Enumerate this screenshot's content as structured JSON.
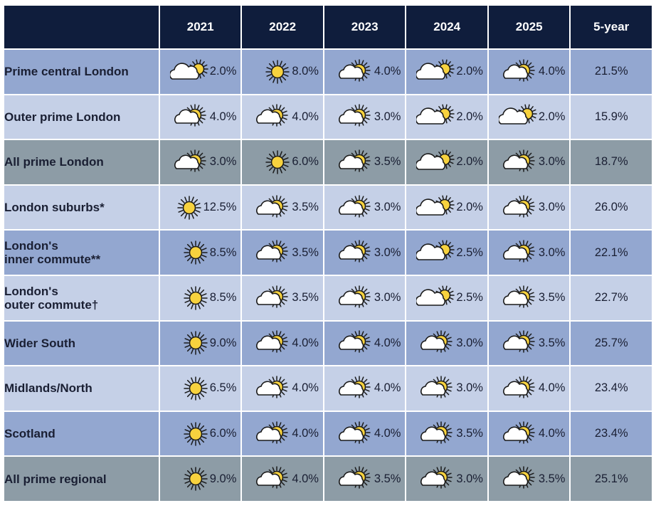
{
  "table": {
    "headers": [
      "",
      "2021",
      "2022",
      "2023",
      "2024",
      "2025",
      "5-year"
    ],
    "rows": [
      {
        "label": "Prime central London",
        "shade": "a",
        "cells": [
          {
            "icon": "cloud-sun-icon",
            "value": "2.0%"
          },
          {
            "icon": "sun-icon",
            "value": "8.0%"
          },
          {
            "icon": "sun-cloud-icon",
            "value": "4.0%"
          },
          {
            "icon": "cloud-sun-icon",
            "value": "2.0%"
          },
          {
            "icon": "sun-cloud-icon",
            "value": "4.0%"
          }
        ],
        "total": "21.5%"
      },
      {
        "label": "Outer prime London",
        "shade": "b",
        "cells": [
          {
            "icon": "sun-cloud-icon",
            "value": "4.0%"
          },
          {
            "icon": "sun-cloud-icon",
            "value": "4.0%"
          },
          {
            "icon": "sun-cloud-icon",
            "value": "3.0%"
          },
          {
            "icon": "cloud-sun-icon",
            "value": "2.0%"
          },
          {
            "icon": "cloud-sun-icon",
            "value": "2.0%"
          }
        ],
        "total": "15.9%"
      },
      {
        "label": "All prime London",
        "shade": "c",
        "cells": [
          {
            "icon": "sun-cloud-icon",
            "value": "3.0%"
          },
          {
            "icon": "sun-icon",
            "value": "6.0%"
          },
          {
            "icon": "sun-cloud-icon",
            "value": "3.5%"
          },
          {
            "icon": "cloud-sun-icon",
            "value": "2.0%"
          },
          {
            "icon": "sun-cloud-icon",
            "value": "3.0%"
          }
        ],
        "total": "18.7%"
      },
      {
        "label": "London suburbs*",
        "shade": "b",
        "cells": [
          {
            "icon": "sun-icon",
            "value": "12.5%"
          },
          {
            "icon": "sun-cloud-icon",
            "value": "3.5%"
          },
          {
            "icon": "sun-cloud-icon",
            "value": "3.0%"
          },
          {
            "icon": "cloud-sun-icon",
            "value": "2.0%"
          },
          {
            "icon": "sun-cloud-icon",
            "value": "3.0%"
          }
        ],
        "total": "26.0%"
      },
      {
        "label": "London's",
        "label2": "inner commute**",
        "shade": "a",
        "cells": [
          {
            "icon": "sun-icon",
            "value": "8.5%"
          },
          {
            "icon": "sun-cloud-icon",
            "value": "3.5%"
          },
          {
            "icon": "sun-cloud-icon",
            "value": "3.0%"
          },
          {
            "icon": "cloud-sun-icon",
            "value": "2.5%"
          },
          {
            "icon": "sun-cloud-icon",
            "value": "3.0%"
          }
        ],
        "total": "22.1%"
      },
      {
        "label": "London's",
        "label2": "outer commute†",
        "shade": "b",
        "cells": [
          {
            "icon": "sun-icon",
            "value": "8.5%"
          },
          {
            "icon": "sun-cloud-icon",
            "value": "3.5%"
          },
          {
            "icon": "sun-cloud-icon",
            "value": "3.0%"
          },
          {
            "icon": "cloud-sun-icon",
            "value": "2.5%"
          },
          {
            "icon": "sun-cloud-icon",
            "value": "3.5%"
          }
        ],
        "total": "22.7%"
      },
      {
        "label": "Wider South",
        "shade": "a",
        "cells": [
          {
            "icon": "sun-icon",
            "value": "9.0%"
          },
          {
            "icon": "sun-cloud-icon",
            "value": "4.0%"
          },
          {
            "icon": "sun-cloud-icon",
            "value": "4.0%"
          },
          {
            "icon": "sun-cloud-icon",
            "value": "3.0%"
          },
          {
            "icon": "sun-cloud-icon",
            "value": "3.5%"
          }
        ],
        "total": "25.7%"
      },
      {
        "label": "Midlands/North",
        "shade": "b",
        "cells": [
          {
            "icon": "sun-icon",
            "value": "6.5%"
          },
          {
            "icon": "sun-cloud-icon",
            "value": "4.0%"
          },
          {
            "icon": "sun-cloud-icon",
            "value": "4.0%"
          },
          {
            "icon": "sun-cloud-icon",
            "value": "3.0%"
          },
          {
            "icon": "sun-cloud-icon",
            "value": "4.0%"
          }
        ],
        "total": "23.4%"
      },
      {
        "label": "Scotland",
        "shade": "a",
        "cells": [
          {
            "icon": "sun-icon",
            "value": "6.0%"
          },
          {
            "icon": "sun-cloud-icon",
            "value": "4.0%"
          },
          {
            "icon": "sun-cloud-icon",
            "value": "4.0%"
          },
          {
            "icon": "sun-cloud-icon",
            "value": "3.5%"
          },
          {
            "icon": "sun-cloud-icon",
            "value": "4.0%"
          }
        ],
        "total": "23.4%"
      },
      {
        "label": "All prime regional",
        "shade": "c",
        "cells": [
          {
            "icon": "sun-icon",
            "value": "9.0%"
          },
          {
            "icon": "sun-cloud-icon",
            "value": "4.0%"
          },
          {
            "icon": "sun-cloud-icon",
            "value": "3.5%"
          },
          {
            "icon": "sun-cloud-icon",
            "value": "3.0%"
          },
          {
            "icon": "sun-cloud-icon",
            "value": "3.5%"
          }
        ],
        "total": "25.1%"
      }
    ]
  },
  "colors": {
    "header_bg": "#0f1d3c",
    "row_blue": "#93a7d0",
    "row_light": "#c5d0e7",
    "row_grey": "#8d9ca6",
    "sun": "#f7d23e"
  }
}
